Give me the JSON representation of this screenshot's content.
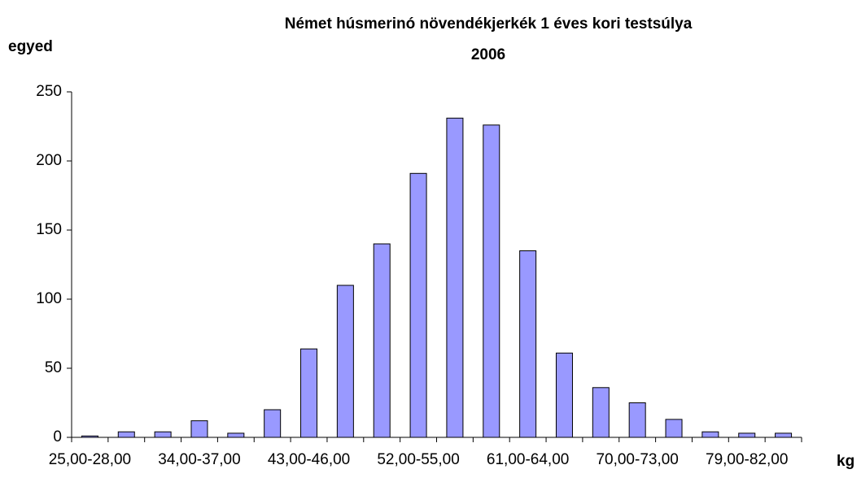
{
  "chart_data": {
    "type": "bar",
    "title": [
      "Német húsmerinó növendékjerkék 1 éves kori testsúlya",
      "2006"
    ],
    "y_label": "egyed",
    "x_label": "kg",
    "categories": [
      "25,00-28,00",
      null,
      null,
      "34,00-37,00",
      null,
      null,
      "43,00-46,00",
      null,
      null,
      "52,00-55,00",
      null,
      null,
      "61,00-64,00",
      null,
      null,
      "70,00-73,00",
      null,
      null,
      "79,00-82,00",
      null
    ],
    "values": [
      1,
      4,
      4,
      12,
      3,
      20,
      64,
      110,
      140,
      191,
      231,
      226,
      135,
      61,
      36,
      25,
      13,
      4,
      3,
      3
    ],
    "color": "#9999ff",
    "ylim": [
      0,
      250
    ],
    "yticks": [
      0,
      50,
      100,
      150,
      200,
      250
    ],
    "grid": false
  }
}
